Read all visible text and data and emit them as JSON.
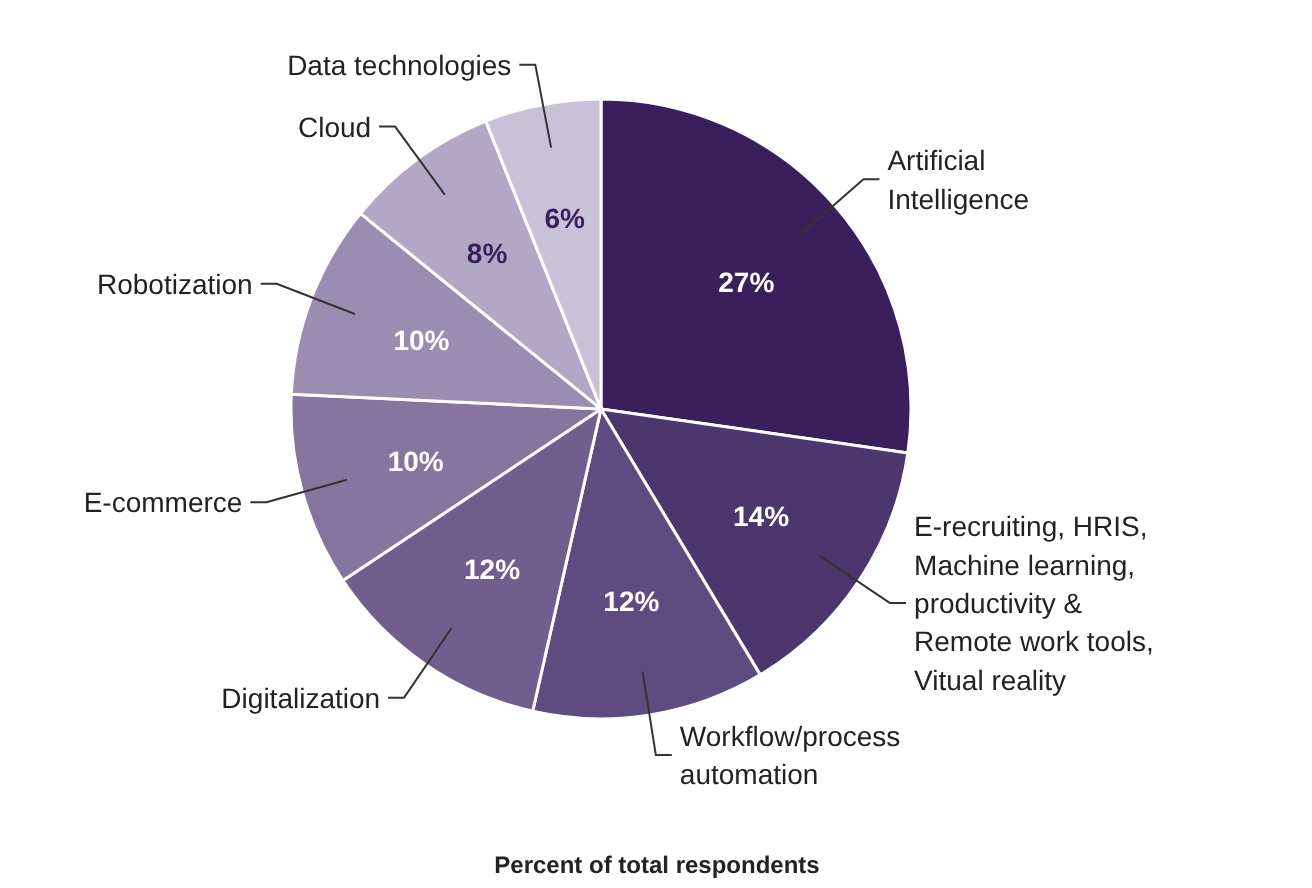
{
  "chart_data": {
    "type": "pie",
    "title": "Percent of total respondents",
    "categories": [
      "Artificial Intelligence",
      "E-recruiting, HRIS, Machine learning, productivity & Remote work tools, Vitual reality",
      "Workflow/process automation",
      "Digitalization",
      "E-commerce",
      "Robotization",
      "Cloud",
      "Data technologies"
    ],
    "values": [
      27,
      14,
      12,
      12,
      10,
      10,
      8,
      6
    ],
    "value_labels": [
      "27%",
      "14%",
      "12%",
      "12%",
      "10%",
      "10%",
      "8%",
      "6%"
    ],
    "colors": [
      "#3b1f5c",
      "#4d356e",
      "#5f4b80",
      "#705e8f",
      "#85769f",
      "#9a8db2",
      "#b2a8c6",
      "#c9c1d7"
    ]
  }
}
